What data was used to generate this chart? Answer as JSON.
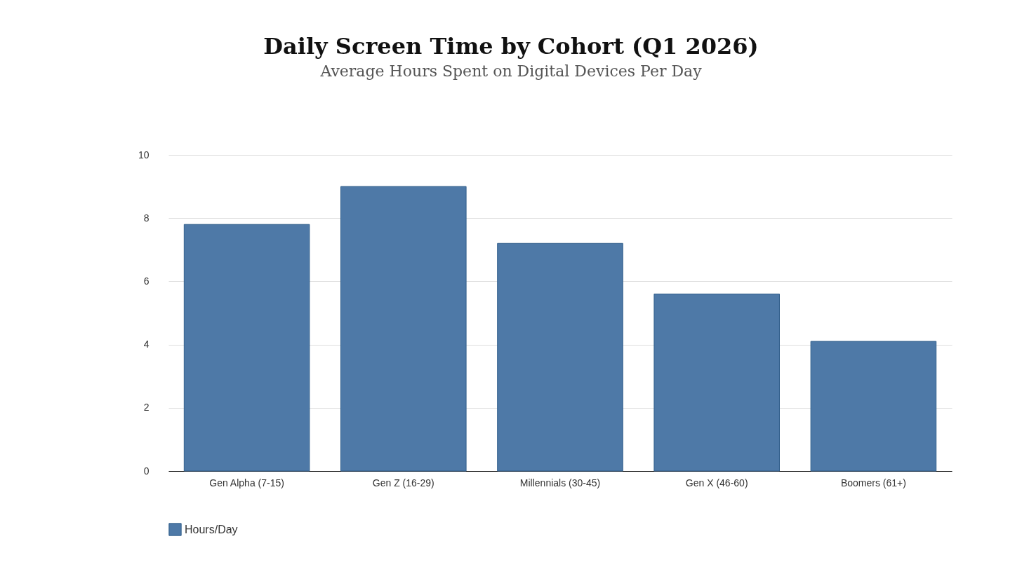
{
  "chart_data": {
    "type": "bar",
    "title": "Daily Screen Time by Cohort (Q1 2026)",
    "subtitle": "Average Hours Spent on Digital Devices Per Day",
    "categories": [
      "Gen Alpha (7-15)",
      "Gen Z (16-29)",
      "Millennials (30-45)",
      "Gen X (46-60)",
      "Boomers (61+)"
    ],
    "series": [
      {
        "name": "Hours/Day",
        "color": "#4e79a7",
        "values": [
          7.8,
          9.0,
          7.2,
          5.6,
          4.1
        ]
      }
    ],
    "ylim": [
      0,
      10
    ],
    "yticks": [
      0,
      2,
      4,
      6,
      8,
      10
    ],
    "grid": "y",
    "legend": "bottom"
  }
}
